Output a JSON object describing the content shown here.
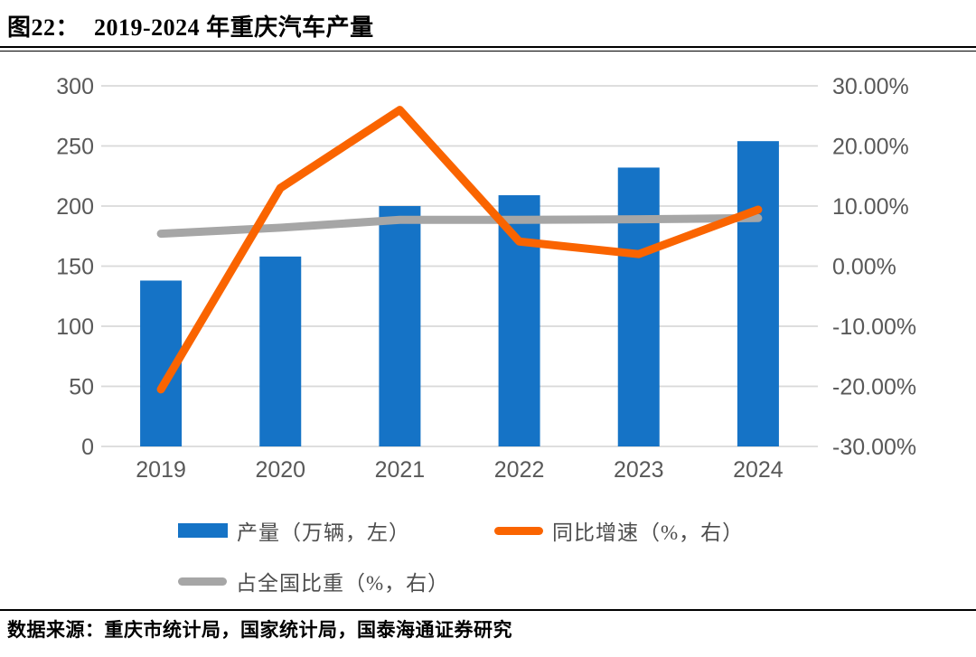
{
  "header": {
    "figure_label": "图22：",
    "title": "2019-2024 年重庆汽车产量"
  },
  "footer": {
    "source": "数据来源：重庆市统计局，国家统计局，国泰海通证券研究"
  },
  "colors": {
    "bar": "#1573C6",
    "yoy_line": "#FA6400",
    "share_line": "#A6A6A6",
    "grid": "#D9D9D9",
    "tick_text": "#595959"
  },
  "chart_data": {
    "type": "bar",
    "title": "2019-2024 年重庆汽车产量",
    "categories": [
      "2019",
      "2020",
      "2021",
      "2022",
      "2023",
      "2024"
    ],
    "series": [
      {
        "name": "产量（万辆，左）",
        "type": "bar",
        "axis": "left",
        "values": [
          138,
          158,
          200,
          209,
          232,
          254
        ]
      },
      {
        "name": "同比增速（%，右）",
        "type": "line",
        "axis": "right",
        "values": [
          -20.5,
          13.0,
          26.0,
          4.1,
          2.0,
          9.4
        ]
      },
      {
        "name": "占全国比重（%，右）",
        "type": "line",
        "axis": "right",
        "values": [
          5.4,
          6.4,
          7.7,
          7.7,
          7.8,
          8.0
        ]
      }
    ],
    "left_axis": {
      "min": 0,
      "max": 300,
      "step": 50,
      "tick_labels": [
        "0",
        "50",
        "100",
        "150",
        "200",
        "250",
        "300"
      ]
    },
    "right_axis": {
      "min": -30,
      "max": 30,
      "step": 10,
      "tick_labels": [
        "-30.00%",
        "-20.00%",
        "-10.00%",
        "0.00%",
        "10.00%",
        "20.00%",
        "30.00%"
      ]
    },
    "grid": true,
    "legend_position": "bottom"
  }
}
